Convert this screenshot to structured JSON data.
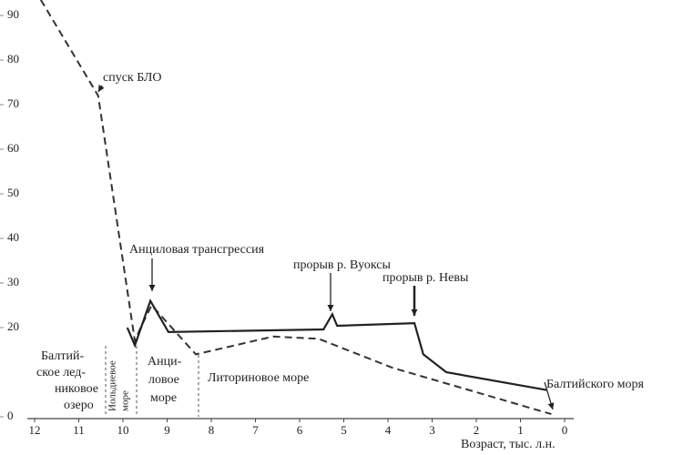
{
  "chart_data": {
    "type": "line",
    "x_label": "Возраст, тыс. л.н.",
    "xlim": [
      12,
      0
    ],
    "xticks": [
      12,
      11,
      10,
      9,
      8,
      7,
      6,
      5,
      4,
      3,
      2,
      1,
      0
    ],
    "ylim": [
      0,
      95
    ],
    "yticks": [
      0,
      20,
      30,
      40,
      50,
      60,
      70,
      80,
      90
    ],
    "series": [
      {
        "color": "#333333",
        "dashed": true,
        "x": [
          11.86,
          10.56,
          9.73,
          9.6,
          9.35,
          8.35,
          6.6,
          5.57,
          3.9,
          2.06,
          0.3
        ],
        "values": [
          93.5,
          72,
          17,
          20,
          25,
          14,
          18,
          17.5,
          11,
          5.7,
          0.6
        ]
      },
      {
        "color": "#222222",
        "dashed": false,
        "x": [
          9.9,
          9.73,
          9.38,
          8.97,
          5.46,
          5.26,
          5.15,
          3.4,
          3.2,
          2.68,
          0.41
        ],
        "values": [
          20,
          16,
          26,
          19,
          19.6,
          23,
          20.4,
          21,
          14,
          10,
          6
        ]
      }
    ],
    "annotations": [
      "спуск БЛО",
      "Анциловая трансгрессия",
      "прорыв р. Вуоксы",
      "прорыв р. Невы",
      "Литориновое море",
      "Балтийского моря"
    ],
    "stages": [
      {
        "lines": [
          "Балтий-",
          "ское лед-",
          "никовое",
          "озеро"
        ]
      },
      {
        "lines": [
          "Иольдиевое",
          "море"
        ]
      },
      {
        "lines": [
          "Анци-",
          "ловое",
          "море"
        ]
      }
    ]
  }
}
